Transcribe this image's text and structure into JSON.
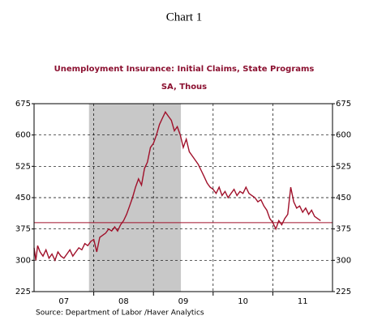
{
  "chart_data": {
    "type": "line",
    "title": "Chart 1",
    "subtitle": "Unemployment Insurance: Initial Claims, State Programs",
    "units": "SA, Thous",
    "source": "Source:  Department of Labor /Haver Analytics",
    "xlim": [
      2007,
      2012
    ],
    "xticks": [
      {
        "value": 2007.5,
        "label": "07"
      },
      {
        "value": 2008.5,
        "label": "08"
      },
      {
        "value": 2009.5,
        "label": "09"
      },
      {
        "value": 2010.5,
        "label": "10"
      },
      {
        "value": 2011.5,
        "label": "11"
      }
    ],
    "xgrid": [
      2008,
      2009,
      2010,
      2011
    ],
    "ylim": [
      225,
      675
    ],
    "yticks": [
      225,
      300,
      375,
      450,
      525,
      600,
      675
    ],
    "grid": true,
    "shaded_region": [
      2007.92,
      2009.46
    ],
    "reference_line": 390,
    "x": [
      2007.0,
      2007.03,
      2007.06,
      2007.1,
      2007.15,
      2007.2,
      2007.25,
      2007.3,
      2007.35,
      2007.4,
      2007.45,
      2007.5,
      2007.55,
      2007.6,
      2007.65,
      2007.7,
      2007.75,
      2007.8,
      2007.85,
      2007.9,
      2007.95,
      2008.0,
      2008.05,
      2008.1,
      2008.15,
      2008.2,
      2008.25,
      2008.3,
      2008.35,
      2008.4,
      2008.45,
      2008.5,
      2008.55,
      2008.6,
      2008.65,
      2008.7,
      2008.75,
      2008.8,
      2008.85,
      2008.9,
      2008.95,
      2009.0,
      2009.05,
      2009.1,
      2009.15,
      2009.2,
      2009.25,
      2009.3,
      2009.35,
      2009.4,
      2009.45,
      2009.5,
      2009.55,
      2009.6,
      2009.65,
      2009.7,
      2009.75,
      2009.8,
      2009.85,
      2009.9,
      2009.95,
      2010.0,
      2010.05,
      2010.1,
      2010.15,
      2010.2,
      2010.25,
      2010.3,
      2010.35,
      2010.4,
      2010.45,
      2010.5,
      2010.55,
      2010.6,
      2010.65,
      2010.7,
      2010.75,
      2010.8,
      2010.85,
      2010.9,
      2010.95,
      2011.0,
      2011.05,
      2011.1,
      2011.15,
      2011.2,
      2011.25,
      2011.3,
      2011.35,
      2011.4,
      2011.45,
      2011.5,
      2011.55,
      2011.6,
      2011.65,
      2011.7,
      2011.75,
      2011.8
    ],
    "series": [
      {
        "name": "Initial Claims",
        "color": "#a0102a",
        "values": [
          330,
          300,
          335,
          320,
          310,
          325,
          305,
          315,
          300,
          320,
          310,
          305,
          315,
          325,
          310,
          320,
          330,
          325,
          340,
          335,
          345,
          350,
          320,
          355,
          360,
          365,
          375,
          370,
          380,
          370,
          385,
          395,
          410,
          430,
          450,
          475,
          495,
          480,
          520,
          535,
          570,
          580,
          600,
          625,
          640,
          655,
          645,
          635,
          610,
          620,
          600,
          570,
          590,
          560,
          550,
          540,
          530,
          515,
          500,
          485,
          475,
          470,
          460,
          475,
          455,
          465,
          450,
          460,
          470,
          455,
          465,
          460,
          475,
          460,
          455,
          450,
          440,
          445,
          430,
          420,
          400,
          390,
          375,
          395,
          385,
          400,
          410,
          475,
          440,
          425,
          430,
          415,
          425,
          410,
          420,
          405,
          400,
          395
        ]
      }
    ]
  }
}
